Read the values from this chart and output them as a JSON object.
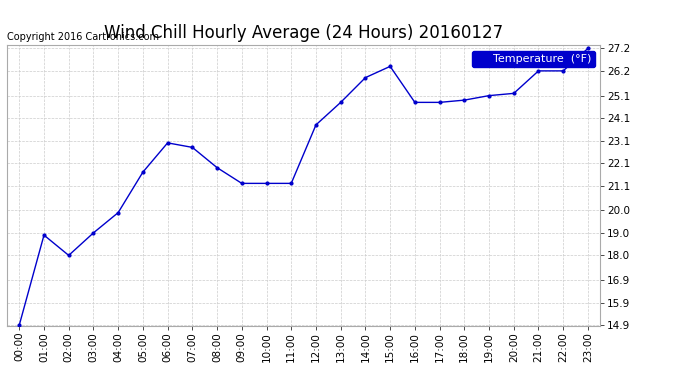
{
  "title": "Wind Chill Hourly Average (24 Hours) 20160127",
  "copyright_text": "Copyright 2016 Cartronics.com",
  "legend_label": "Temperature  (°F)",
  "x_labels": [
    "00:00",
    "01:00",
    "02:00",
    "03:00",
    "04:00",
    "05:00",
    "06:00",
    "07:00",
    "08:00",
    "09:00",
    "10:00",
    "11:00",
    "12:00",
    "13:00",
    "14:00",
    "15:00",
    "16:00",
    "17:00",
    "18:00",
    "19:00",
    "20:00",
    "21:00",
    "22:00",
    "23:00"
  ],
  "y_values": [
    14.9,
    18.9,
    18.0,
    19.0,
    19.9,
    21.7,
    23.0,
    22.8,
    21.9,
    21.2,
    21.2,
    21.2,
    23.8,
    24.8,
    25.9,
    26.4,
    24.8,
    24.8,
    24.9,
    25.1,
    25.2,
    26.2,
    26.2,
    27.2
  ],
  "line_color": "#0000cc",
  "marker_color": "#0000cc",
  "bg_color": "#ffffff",
  "grid_color": "#cccccc",
  "ylim_min": 14.9,
  "ylim_max": 27.2,
  "ytick_values": [
    14.9,
    15.9,
    16.9,
    18.0,
    19.0,
    20.0,
    21.1,
    22.1,
    23.1,
    24.1,
    25.1,
    26.2,
    27.2
  ],
  "ytick_labels": [
    "14.9",
    "15.9",
    "16.9",
    "18.0",
    "19.0",
    "20.0",
    "21.1",
    "22.1",
    "23.1",
    "24.1",
    "25.1",
    "26.2",
    "27.2"
  ],
  "title_fontsize": 12,
  "tick_fontsize": 7.5,
  "legend_fontsize": 8,
  "copyright_fontsize": 7
}
